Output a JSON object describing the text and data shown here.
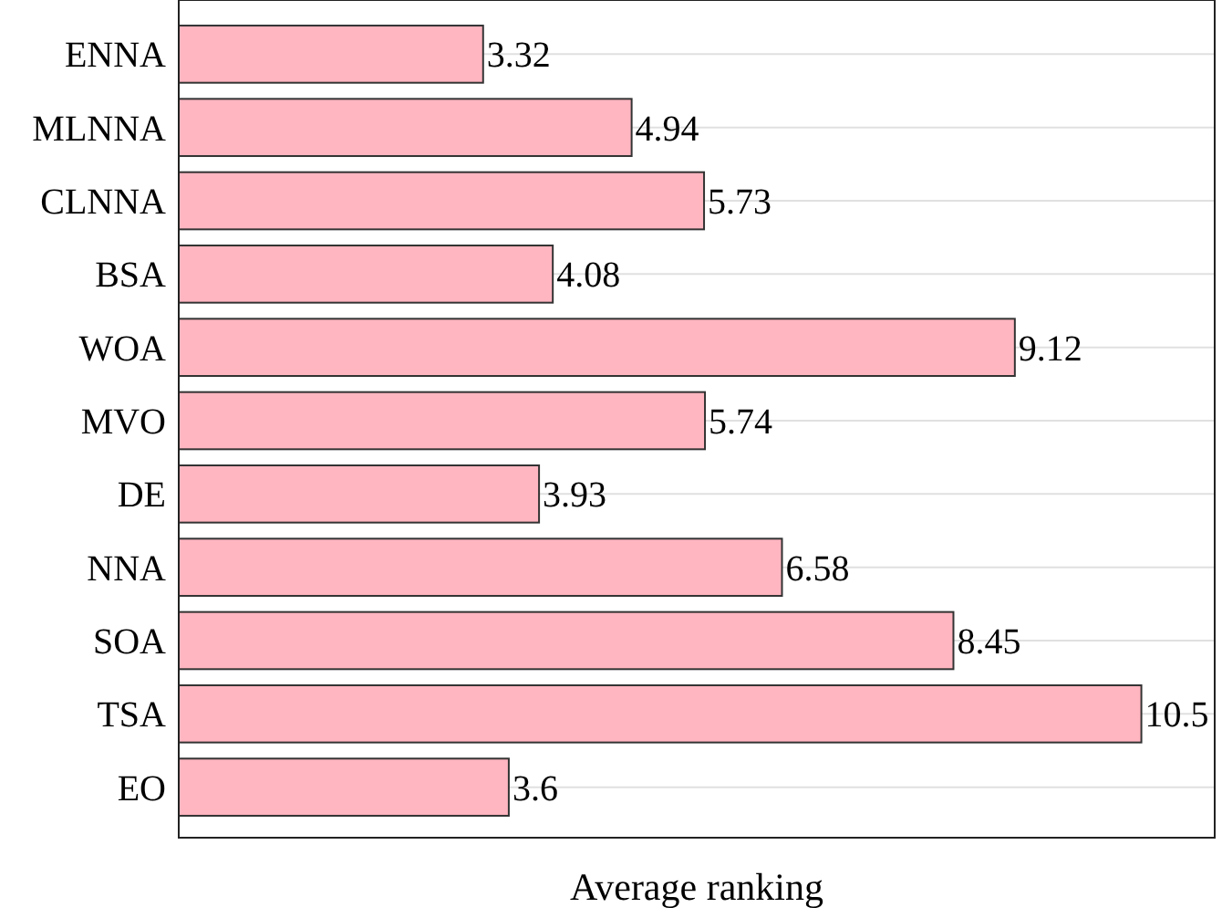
{
  "chart_data": {
    "type": "bar",
    "orientation": "horizontal",
    "xlabel": "Average ranking",
    "categories": [
      "ENNA",
      "MLNNA",
      "CLNNA",
      "BSA",
      "WOA",
      "MVO",
      "DE",
      "NNA",
      "SOA",
      "TSA",
      "EO"
    ],
    "values": [
      3.32,
      4.94,
      5.73,
      4.08,
      9.12,
      5.74,
      3.93,
      6.58,
      8.45,
      10.5,
      3.6
    ],
    "color": "#ffb6c1",
    "xlim": [
      0,
      11.3
    ],
    "data_labels": true,
    "grid": "y",
    "tick_labels": "y"
  }
}
